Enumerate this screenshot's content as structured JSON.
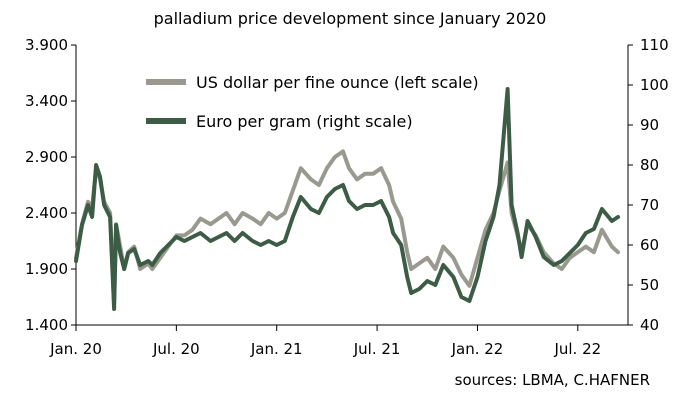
{
  "chart_data": {
    "type": "line",
    "title": "palladium price development since January 2020",
    "source": "sources: LBMA, C.HAFNER",
    "x_tick_labels": [
      "Jan. 20",
      "Jul. 20",
      "Jan. 21",
      "Jul. 21",
      "Jan. 22",
      "Jul. 22"
    ],
    "x_tick_years": [
      2020.0,
      2020.5,
      2021.0,
      2021.5,
      2022.0,
      2022.5
    ],
    "xlim": [
      2020.0,
      2022.75
    ],
    "y_left": {
      "lim": [
        1400,
        3900
      ],
      "ticks": [
        "1.400",
        "1.900",
        "2.400",
        "2.900",
        "3.400",
        "3.900"
      ]
    },
    "y_right": {
      "lim": [
        40,
        110
      ],
      "ticks": [
        "40",
        "50",
        "60",
        "70",
        "80",
        "90",
        "100",
        "110"
      ]
    },
    "legend": {
      "placement": "top-center"
    },
    "grid": false,
    "series": [
      {
        "name": "US dollar per fine ounce (left scale)",
        "axis": "left",
        "color": "#999990",
        "x": [
          2020.0,
          2020.03,
          2020.06,
          2020.08,
          2020.1,
          2020.12,
          2020.14,
          2020.17,
          2020.19,
          2020.2,
          2020.21,
          2020.22,
          2020.24,
          2020.26,
          2020.29,
          2020.32,
          2020.36,
          2020.38,
          2020.42,
          2020.46,
          2020.5,
          2020.54,
          2020.58,
          2020.62,
          2020.67,
          2020.71,
          2020.75,
          2020.79,
          2020.83,
          2020.88,
          2020.92,
          2020.96,
          2021.0,
          2021.04,
          2021.08,
          2021.12,
          2021.17,
          2021.21,
          2021.25,
          2021.29,
          2021.33,
          2021.36,
          2021.4,
          2021.44,
          2021.48,
          2021.52,
          2021.56,
          2021.58,
          2021.62,
          2021.65,
          2021.67,
          2021.71,
          2021.75,
          2021.79,
          2021.83,
          2021.88,
          2021.92,
          2021.96,
          2022.0,
          2022.04,
          2022.08,
          2022.11,
          2022.15,
          2022.17,
          2022.2,
          2022.22,
          2022.25,
          2022.29,
          2022.33,
          2022.38,
          2022.42,
          2022.46,
          2022.5,
          2022.54,
          2022.58,
          2022.62,
          2022.67,
          2022.7
        ],
        "values": [
          2000,
          2300,
          2500,
          2450,
          2800,
          2700,
          2500,
          2400,
          1600,
          2300,
          2200,
          2100,
          1900,
          2050,
          2100,
          1900,
          1950,
          1900,
          2000,
          2100,
          2200,
          2200,
          2250,
          2350,
          2300,
          2350,
          2400,
          2300,
          2400,
          2350,
          2300,
          2400,
          2350,
          2400,
          2600,
          2800,
          2700,
          2650,
          2800,
          2900,
          2950,
          2800,
          2700,
          2750,
          2750,
          2800,
          2650,
          2500,
          2350,
          2050,
          1900,
          1950,
          2000,
          1900,
          2100,
          2000,
          1850,
          1750,
          2000,
          2250,
          2400,
          2600,
          2850,
          2400,
          2200,
          2050,
          2300,
          2200,
          2050,
          1950,
          1900,
          2000,
          2050,
          2100,
          2050,
          2250,
          2100,
          2050
        ]
      },
      {
        "name": "Euro per gram (right scale)",
        "axis": "right",
        "color": "#3d5c46",
        "x": [
          2020.0,
          2020.03,
          2020.06,
          2020.08,
          2020.1,
          2020.12,
          2020.14,
          2020.17,
          2020.19,
          2020.2,
          2020.21,
          2020.22,
          2020.24,
          2020.26,
          2020.29,
          2020.32,
          2020.36,
          2020.38,
          2020.42,
          2020.46,
          2020.5,
          2020.54,
          2020.58,
          2020.62,
          2020.67,
          2020.71,
          2020.75,
          2020.79,
          2020.83,
          2020.88,
          2020.92,
          2020.96,
          2021.0,
          2021.04,
          2021.08,
          2021.12,
          2021.17,
          2021.21,
          2021.25,
          2021.29,
          2021.33,
          2021.36,
          2021.4,
          2021.44,
          2021.48,
          2021.52,
          2021.56,
          2021.58,
          2021.62,
          2021.65,
          2021.67,
          2021.71,
          2021.75,
          2021.79,
          2021.83,
          2021.88,
          2021.92,
          2021.96,
          2022.0,
          2022.04,
          2022.08,
          2022.11,
          2022.15,
          2022.17,
          2022.2,
          2022.22,
          2022.25,
          2022.29,
          2022.33,
          2022.38,
          2022.42,
          2022.46,
          2022.5,
          2022.54,
          2022.58,
          2022.62,
          2022.67,
          2022.7
        ],
        "values": [
          56,
          65,
          70,
          67,
          80,
          77,
          70,
          67,
          44,
          65,
          61,
          58,
          54,
          58,
          59,
          55,
          56,
          55,
          58,
          60,
          62,
          61,
          62,
          63,
          61,
          62,
          63,
          61,
          63,
          61,
          60,
          61,
          60,
          61,
          67,
          72,
          69,
          68,
          72,
          74,
          75,
          71,
          69,
          70,
          70,
          71,
          67,
          63,
          60,
          52,
          48,
          49,
          51,
          50,
          55,
          52,
          47,
          46,
          52,
          61,
          67,
          75,
          99,
          70,
          63,
          57,
          66,
          62,
          57,
          55,
          56,
          58,
          60,
          63,
          64,
          69,
          66,
          67
        ]
      }
    ]
  }
}
